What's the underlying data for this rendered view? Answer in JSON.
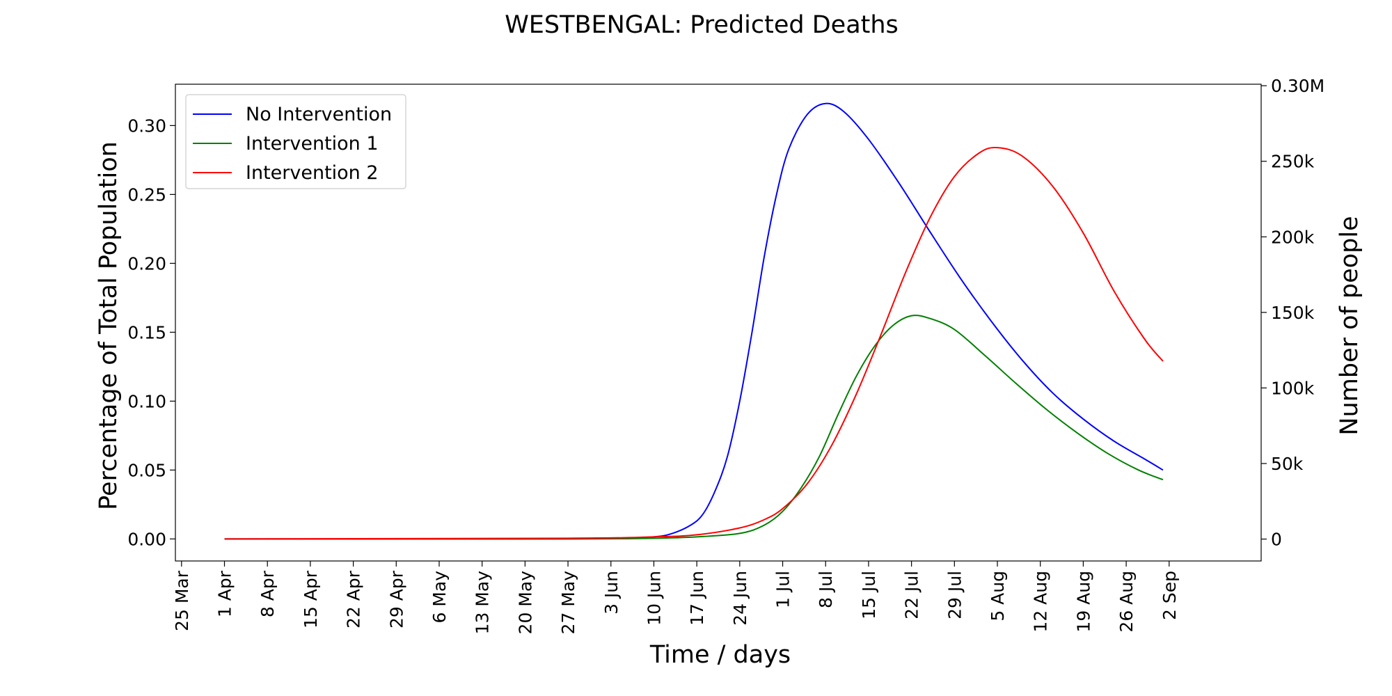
{
  "chart_data": {
    "type": "line",
    "title": "WESTBENGAL: Predicted Deaths",
    "xlabel": "Time / days",
    "ylabel": "Percentage of Total Population",
    "ylabel_right": "Number of people",
    "x_ticks": [
      "25 Mar",
      "1 Apr",
      "8 Apr",
      "15 Apr",
      "22 Apr",
      "29 Apr",
      "6 May",
      "13 May",
      "20 May",
      "27 May",
      "3 Jun",
      "10 Jun",
      "17 Jun",
      "24 Jun",
      "1 Jul",
      "8 Jul",
      "15 Jul",
      "22 Jul",
      "29 Jul",
      "5 Aug",
      "12 Aug",
      "19 Aug",
      "26 Aug",
      "2 Sep"
    ],
    "x_tick_rotation": 90,
    "xlim": [
      "2020-03-24",
      "2020-09-17"
    ],
    "ylim": [
      -0.016,
      0.33
    ],
    "y_ticks": [
      0.0,
      0.05,
      0.1,
      0.15,
      0.2,
      0.25,
      0.3
    ],
    "y_tick_labels": [
      "0.00",
      "0.05",
      "0.10",
      "0.15",
      "0.20",
      "0.25",
      "0.30"
    ],
    "right_axis": {
      "ylim": [
        -14500,
        301000
      ],
      "ticks": [
        0,
        50000,
        100000,
        150000,
        200000,
        250000,
        300000
      ],
      "tick_labels": [
        "0",
        "50k",
        "100k",
        "150k",
        "200k",
        "250k",
        "0.30M"
      ]
    },
    "grid": false,
    "legend_position": "top-left",
    "series": [
      {
        "name": "No Intervention",
        "color": "#0000ff",
        "points": [
          [
            "2020-04-01",
            0.0
          ],
          [
            "2020-05-20",
            0.0
          ],
          [
            "2020-06-03",
            0.0005
          ],
          [
            "2020-06-10",
            0.0015
          ],
          [
            "2020-06-13",
            0.004
          ],
          [
            "2020-06-16",
            0.01
          ],
          [
            "2020-06-18",
            0.018
          ],
          [
            "2020-06-20",
            0.035
          ],
          [
            "2020-06-22",
            0.06
          ],
          [
            "2020-06-24",
            0.1
          ],
          [
            "2020-06-26",
            0.15
          ],
          [
            "2020-06-28",
            0.205
          ],
          [
            "2020-06-30",
            0.25
          ],
          [
            "2020-07-02",
            0.283
          ],
          [
            "2020-07-05",
            0.308
          ],
          [
            "2020-07-08",
            0.316
          ],
          [
            "2020-07-11",
            0.31
          ],
          [
            "2020-07-15",
            0.29
          ],
          [
            "2020-07-20",
            0.258
          ],
          [
            "2020-07-25",
            0.223
          ],
          [
            "2020-07-30",
            0.189
          ],
          [
            "2020-08-04",
            0.158
          ],
          [
            "2020-08-09",
            0.13
          ],
          [
            "2020-08-14",
            0.106
          ],
          [
            "2020-08-19",
            0.087
          ],
          [
            "2020-08-24",
            0.071
          ],
          [
            "2020-08-29",
            0.058
          ],
          [
            "2020-09-01",
            0.05
          ]
        ]
      },
      {
        "name": "Intervention 1",
        "color": "#008000",
        "points": [
          [
            "2020-04-01",
            0.0
          ],
          [
            "2020-05-27",
            0.0
          ],
          [
            "2020-06-10",
            0.0005
          ],
          [
            "2020-06-17",
            0.0015
          ],
          [
            "2020-06-24",
            0.004
          ],
          [
            "2020-06-28",
            0.01
          ],
          [
            "2020-07-01",
            0.02
          ],
          [
            "2020-07-04",
            0.037
          ],
          [
            "2020-07-07",
            0.06
          ],
          [
            "2020-07-10",
            0.09
          ],
          [
            "2020-07-13",
            0.118
          ],
          [
            "2020-07-16",
            0.14
          ],
          [
            "2020-07-19",
            0.155
          ],
          [
            "2020-07-22",
            0.162
          ],
          [
            "2020-07-25",
            0.16
          ],
          [
            "2020-07-29",
            0.152
          ],
          [
            "2020-08-03",
            0.133
          ],
          [
            "2020-08-08",
            0.113
          ],
          [
            "2020-08-13",
            0.094
          ],
          [
            "2020-08-18",
            0.077
          ],
          [
            "2020-08-23",
            0.062
          ],
          [
            "2020-08-28",
            0.05
          ],
          [
            "2020-09-01",
            0.043
          ]
        ]
      },
      {
        "name": "Intervention 2",
        "color": "#ff0000",
        "points": [
          [
            "2020-04-01",
            0.0
          ],
          [
            "2020-05-27",
            0.0005
          ],
          [
            "2020-06-10",
            0.0015
          ],
          [
            "2020-06-17",
            0.003
          ],
          [
            "2020-06-24",
            0.008
          ],
          [
            "2020-06-28",
            0.014
          ],
          [
            "2020-07-01",
            0.022
          ],
          [
            "2020-07-05",
            0.04
          ],
          [
            "2020-07-09",
            0.068
          ],
          [
            "2020-07-13",
            0.105
          ],
          [
            "2020-07-17",
            0.148
          ],
          [
            "2020-07-21",
            0.193
          ],
          [
            "2020-07-25",
            0.233
          ],
          [
            "2020-07-29",
            0.263
          ],
          [
            "2020-08-02",
            0.28
          ],
          [
            "2020-08-05",
            0.284
          ],
          [
            "2020-08-09",
            0.278
          ],
          [
            "2020-08-14",
            0.256
          ],
          [
            "2020-08-19",
            0.222
          ],
          [
            "2020-08-24",
            0.18
          ],
          [
            "2020-08-29",
            0.145
          ],
          [
            "2020-09-01",
            0.129
          ]
        ]
      }
    ]
  }
}
